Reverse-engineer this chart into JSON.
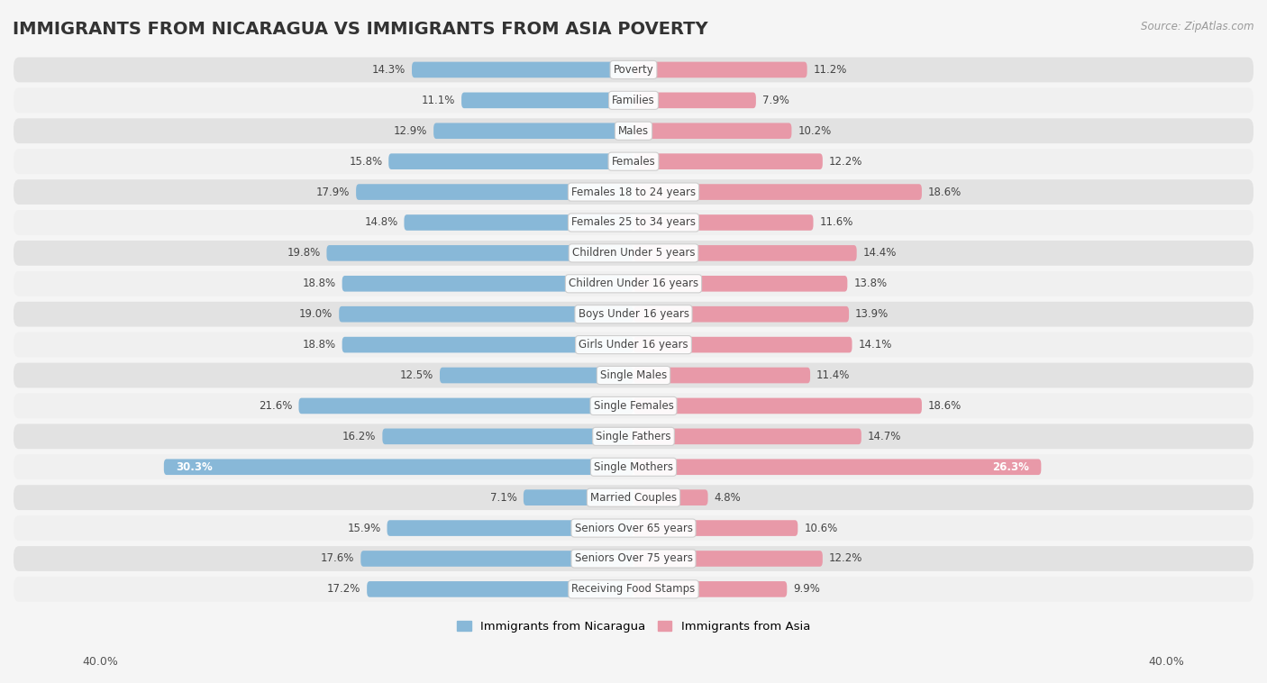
{
  "title": "IMMIGRANTS FROM NICARAGUA VS IMMIGRANTS FROM ASIA POVERTY",
  "source": "Source: ZipAtlas.com",
  "categories": [
    "Poverty",
    "Families",
    "Males",
    "Females",
    "Females 18 to 24 years",
    "Females 25 to 34 years",
    "Children Under 5 years",
    "Children Under 16 years",
    "Boys Under 16 years",
    "Girls Under 16 years",
    "Single Males",
    "Single Females",
    "Single Fathers",
    "Single Mothers",
    "Married Couples",
    "Seniors Over 65 years",
    "Seniors Over 75 years",
    "Receiving Food Stamps"
  ],
  "nicaragua_values": [
    14.3,
    11.1,
    12.9,
    15.8,
    17.9,
    14.8,
    19.8,
    18.8,
    19.0,
    18.8,
    12.5,
    21.6,
    16.2,
    30.3,
    7.1,
    15.9,
    17.6,
    17.2
  ],
  "asia_values": [
    11.2,
    7.9,
    10.2,
    12.2,
    18.6,
    11.6,
    14.4,
    13.8,
    13.9,
    14.1,
    11.4,
    18.6,
    14.7,
    26.3,
    4.8,
    10.6,
    12.2,
    9.9
  ],
  "nicaragua_color": "#88b8d8",
  "asia_color": "#e899a8",
  "row_bg_light": "#f0f0f0",
  "row_bg_dark": "#e2e2e2",
  "background_color": "#f5f5f5",
  "max_val": 40.0,
  "title_fontsize": 14,
  "label_fontsize": 8.5,
  "value_fontsize": 8.5,
  "legend_label_nicaragua": "Immigrants from Nicaragua",
  "legend_label_asia": "Immigrants from Asia"
}
